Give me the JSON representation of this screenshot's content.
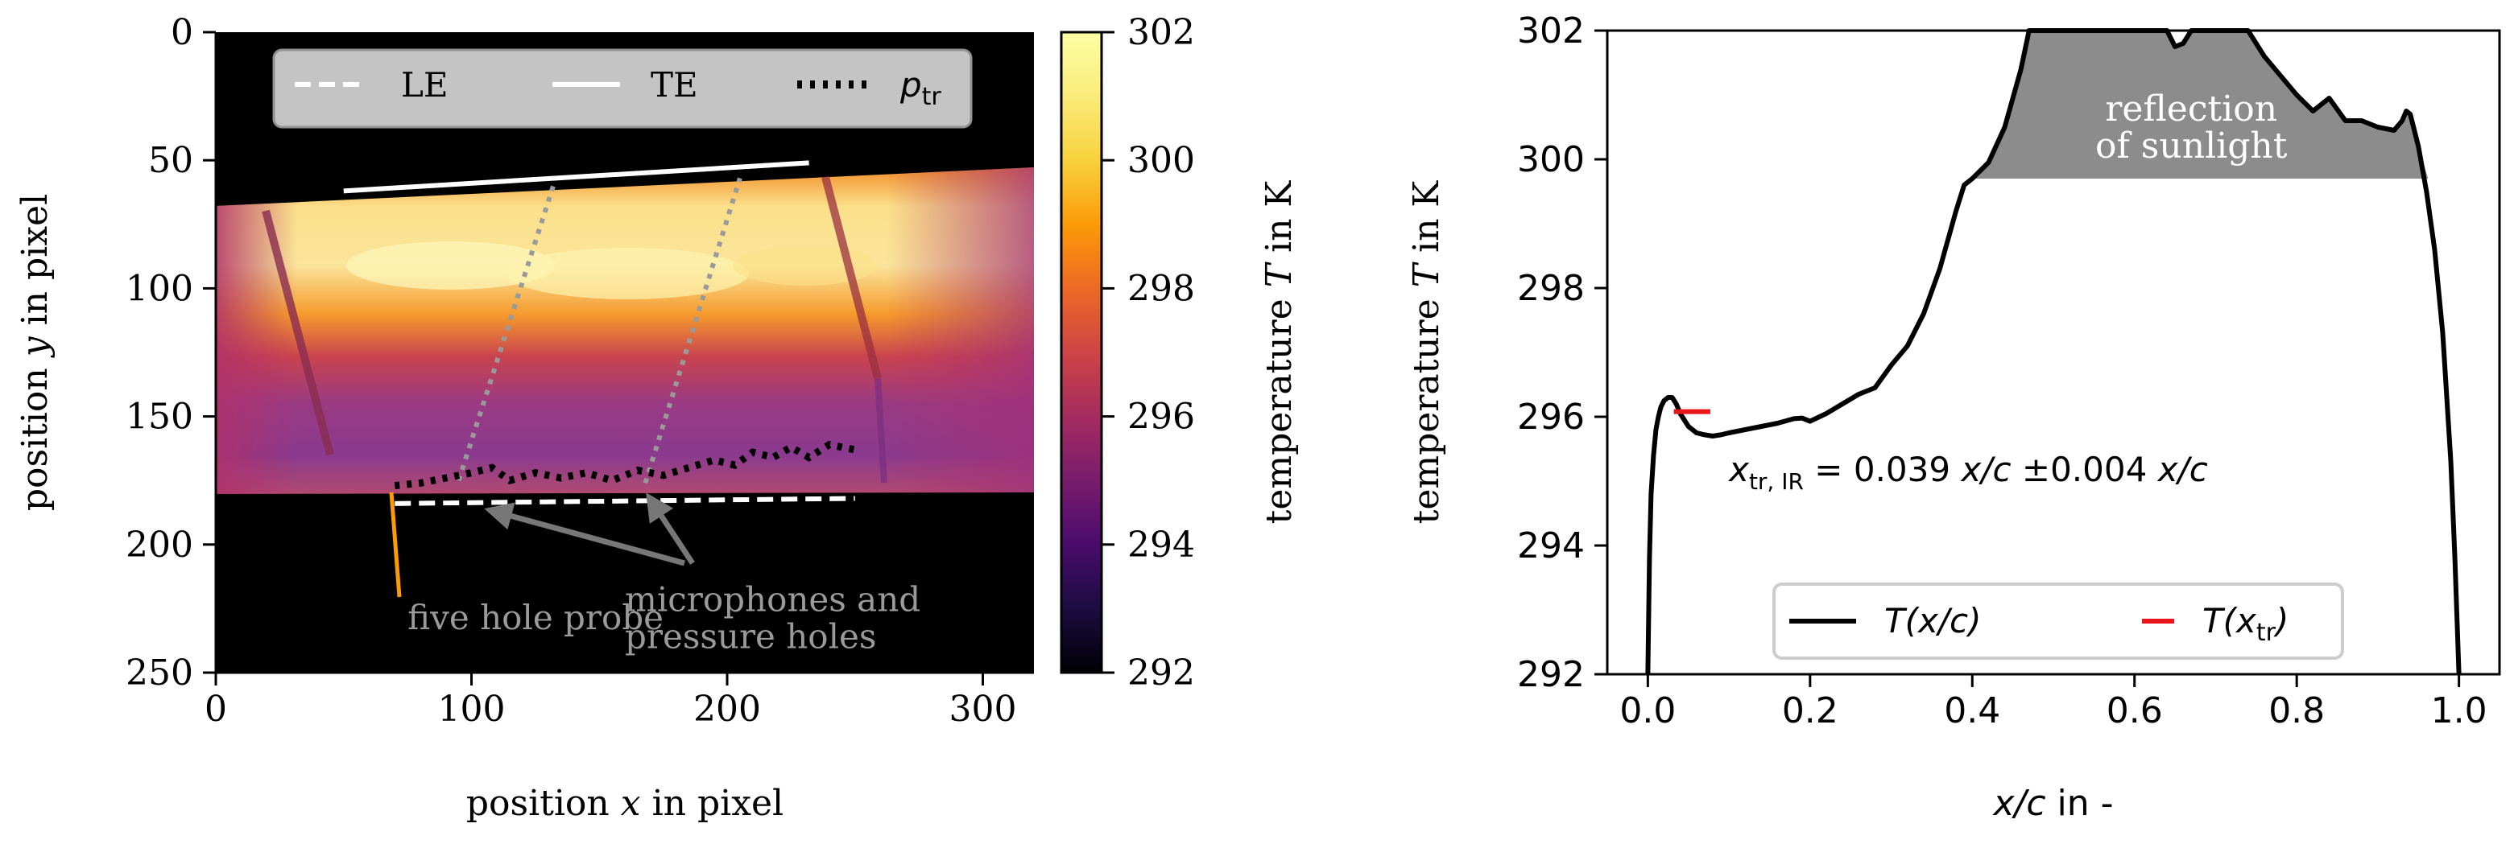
{
  "chart_data": [
    {
      "type": "heatmap",
      "xlabel_prefix": "position ",
      "xlabel_var": "x",
      "xlabel_suffix": " in pixel",
      "ylabel_prefix": "position ",
      "ylabel_var": "y",
      "ylabel_suffix": " in pixel",
      "xlim": [
        0,
        320
      ],
      "ylim": [
        250,
        0
      ],
      "xticks": [
        0,
        100,
        200,
        300
      ],
      "yticks": [
        0,
        50,
        100,
        150,
        200,
        250
      ],
      "colormap": "inferno",
      "colorbar": {
        "label_prefix": "temperature ",
        "label_var": "T",
        "label_suffix": " in K",
        "range": [
          292,
          302
        ],
        "ticks": [
          292,
          294,
          296,
          298,
          300,
          302
        ]
      },
      "legend_position": "top",
      "legend": [
        {
          "label": "LE",
          "style": "dashed",
          "color": "#ffffff"
        },
        {
          "label": "TE",
          "style": "solid",
          "color": "#ffffff"
        },
        {
          "label_main": "p",
          "label_sub": "tr",
          "style": "dotted",
          "color": "#000000"
        }
      ],
      "series": {
        "LE": [
          [
            70,
            184
          ],
          [
            250,
            182
          ]
        ],
        "TE": [
          [
            50,
            62
          ],
          [
            232,
            51
          ]
        ],
        "p_tr": [
          [
            70,
            177
          ],
          [
            80,
            176
          ],
          [
            90,
            174
          ],
          [
            100,
            172
          ],
          [
            108,
            170
          ],
          [
            115,
            175
          ],
          [
            125,
            172
          ],
          [
            135,
            174
          ],
          [
            145,
            172
          ],
          [
            155,
            175
          ],
          [
            165,
            171
          ],
          [
            175,
            173
          ],
          [
            185,
            170
          ],
          [
            195,
            167
          ],
          [
            203,
            169
          ],
          [
            210,
            164
          ],
          [
            218,
            166
          ],
          [
            225,
            162
          ],
          [
            232,
            166
          ],
          [
            240,
            161
          ],
          [
            250,
            163
          ]
        ],
        "microphone_lines": [
          [
            [
              95,
              175
            ],
            [
              132,
              60
            ]
          ],
          [
            [
              168,
              176
            ],
            [
              205,
              57
            ]
          ]
        ]
      },
      "annotations": [
        {
          "text": "five hole probe",
          "x": 75,
          "y": 233
        },
        {
          "text_line1": "microphones and",
          "text_line2": "pressure holes",
          "x": 160,
          "y": 226
        }
      ]
    },
    {
      "type": "line",
      "xlabel_var": "x/c",
      "xlabel_suffix": " in -",
      "ylabel_prefix": "temperature ",
      "ylabel_var": "T",
      "ylabel_suffix": " in K",
      "xlim": [
        -0.05,
        1.05
      ],
      "ylim": [
        292,
        302
      ],
      "xticks": [
        0.0,
        0.2,
        0.4,
        0.6,
        0.8,
        1.0
      ],
      "xtick_labels": [
        "0.0",
        "0.2",
        "0.4",
        "0.6",
        "0.8",
        "1.0"
      ],
      "yticks": [
        292,
        294,
        296,
        298,
        300,
        302
      ],
      "legend_position": "bottom",
      "legend": [
        {
          "label_main": "T(x/c)",
          "color": "#000000"
        },
        {
          "label_main": "T(x",
          "label_sub": "tr",
          "label_end": ")",
          "color": "#e8161b"
        }
      ],
      "series": [
        {
          "name": "T(x/c)",
          "x": [
            0.0,
            0.002,
            0.004,
            0.007,
            0.01,
            0.013,
            0.016,
            0.02,
            0.025,
            0.03,
            0.035,
            0.04,
            0.05,
            0.06,
            0.07,
            0.08,
            0.09,
            0.1,
            0.12,
            0.14,
            0.16,
            0.18,
            0.19,
            0.2,
            0.22,
            0.24,
            0.26,
            0.28,
            0.3,
            0.32,
            0.34,
            0.36,
            0.38,
            0.39,
            0.4,
            0.42,
            0.44,
            0.46,
            0.47,
            0.5,
            0.55,
            0.6,
            0.64,
            0.65,
            0.66,
            0.67,
            0.68,
            0.7,
            0.74,
            0.76,
            0.78,
            0.8,
            0.82,
            0.84,
            0.86,
            0.88,
            0.9,
            0.92,
            0.93,
            0.935,
            0.94,
            0.95,
            0.96,
            0.97,
            0.98,
            0.99,
            0.995,
            1.0
          ],
          "y": [
            292.0,
            293.8,
            294.8,
            295.4,
            295.8,
            296.0,
            296.15,
            296.25,
            296.3,
            296.3,
            296.2,
            296.05,
            295.85,
            295.75,
            295.72,
            295.7,
            295.72,
            295.75,
            295.8,
            295.85,
            295.9,
            295.97,
            295.98,
            295.93,
            296.05,
            296.2,
            296.35,
            296.45,
            296.8,
            297.1,
            297.6,
            298.3,
            299.2,
            299.6,
            299.7,
            299.95,
            300.5,
            301.4,
            302.0,
            302.2,
            302.2,
            302.2,
            302.1,
            301.75,
            301.8,
            302.0,
            302.1,
            302.1,
            302.0,
            301.6,
            301.3,
            301.0,
            300.75,
            300.95,
            300.6,
            300.6,
            300.5,
            300.45,
            300.6,
            300.75,
            300.7,
            300.2,
            299.5,
            298.6,
            297.3,
            295.3,
            293.8,
            292.0
          ]
        },
        {
          "name": "T(x_tr)",
          "x": [
            0.032,
            0.077
          ],
          "y": [
            296.08,
            296.08
          ]
        }
      ],
      "shaded_region": {
        "color": "#8c8c8c",
        "threshold_y": 299.7,
        "x_from": 0.39,
        "x_to": 0.96
      },
      "annotations": [
        {
          "text_line1": "reflection",
          "text_line2": "of sunlight",
          "x": 0.67,
          "y": 300.6
        },
        {
          "var": "x",
          "sub": "tr, IR",
          "eq": " = 0.039 ",
          "v1": "x/c",
          "pm": " ±0.004 ",
          "v2": "x/c",
          "x": 0.1,
          "y": 295.0
        }
      ]
    }
  ]
}
